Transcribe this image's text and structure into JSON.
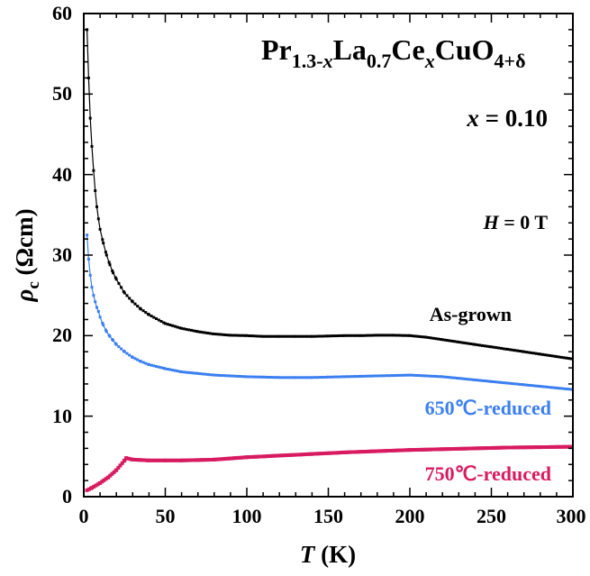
{
  "chart_data": {
    "type": "line",
    "title": {
      "pre": "Pr",
      "sub1": "1.3-",
      "sub1_var": "x",
      "mid1": "La",
      "sub2": "0.7",
      "mid2": "Ce",
      "sub3_var": "x",
      "mid3": "CuO",
      "sub4": "4+δ"
    },
    "annotations": {
      "x_var": "x",
      "x_value": " = 0.10",
      "h_var": "H",
      "h_value": " = 0 T"
    },
    "xlabel": {
      "var": "T",
      "unit": " (K)"
    },
    "ylabel": {
      "var": "ρ",
      "sub": "c",
      "unit": " (Ωcm)"
    },
    "xlim": [
      0,
      300
    ],
    "ylim": [
      0,
      60
    ],
    "xticks": [
      "0",
      "50",
      "100",
      "150",
      "200",
      "250",
      "300"
    ],
    "yticks": [
      "0",
      "10",
      "20",
      "30",
      "40",
      "50",
      "60"
    ],
    "series": [
      {
        "name": "As-grown",
        "color": "#000000",
        "x": [
          2,
          3,
          4,
          5,
          6,
          7,
          8,
          9,
          10,
          12,
          14,
          16,
          18,
          20,
          25,
          30,
          35,
          40,
          50,
          60,
          70,
          80,
          90,
          100,
          110,
          120,
          130,
          140,
          150,
          160,
          170,
          180,
          190,
          200,
          210,
          220,
          230,
          240,
          250,
          260,
          270,
          280,
          290,
          300
        ],
        "y": [
          58,
          52,
          47,
          43.5,
          40.5,
          38,
          36,
          34.5,
          33.2,
          31.5,
          30,
          28.8,
          27.8,
          27,
          25.3,
          24.2,
          23.3,
          22.6,
          21.5,
          20.9,
          20.5,
          20.2,
          20.05,
          20,
          19.9,
          19.9,
          19.9,
          19.9,
          19.95,
          20,
          20,
          20.05,
          20.05,
          20,
          19.8,
          19.5,
          19.2,
          18.9,
          18.6,
          18.3,
          18.0,
          17.7,
          17.4,
          17.1
        ]
      },
      {
        "name": "650℃-reduced",
        "color": "#3b7ff0",
        "x": [
          2,
          3,
          4,
          5,
          6,
          7,
          8,
          9,
          10,
          12,
          14,
          16,
          18,
          20,
          25,
          30,
          35,
          40,
          50,
          60,
          70,
          80,
          90,
          100,
          110,
          120,
          130,
          140,
          150,
          160,
          170,
          180,
          190,
          200,
          210,
          220,
          230,
          240,
          250,
          260,
          270,
          280,
          290,
          300
        ],
        "y": [
          32.5,
          29.5,
          27.5,
          26,
          25,
          24.2,
          23.5,
          23,
          22.3,
          21.3,
          20.5,
          19.9,
          19.4,
          18.9,
          18.0,
          17.3,
          16.8,
          16.4,
          15.9,
          15.5,
          15.3,
          15.1,
          15.0,
          14.9,
          14.85,
          14.8,
          14.8,
          14.8,
          14.85,
          14.9,
          14.95,
          15.0,
          15.05,
          15.1,
          15.0,
          14.9,
          14.7,
          14.5,
          14.3,
          14.1,
          13.9,
          13.7,
          13.5,
          13.3
        ]
      },
      {
        "name": "750℃-reduced",
        "color": "#d81b60",
        "x": [
          2,
          5,
          10,
          15,
          20,
          25,
          26,
          30,
          40,
          50,
          60,
          70,
          80,
          90,
          100,
          120,
          140,
          160,
          180,
          200,
          220,
          240,
          260,
          280,
          300
        ],
        "y": [
          0.8,
          1.1,
          1.7,
          2.4,
          3.3,
          4.5,
          4.8,
          4.6,
          4.5,
          4.5,
          4.5,
          4.55,
          4.6,
          4.75,
          4.9,
          5.1,
          5.3,
          5.5,
          5.65,
          5.8,
          5.9,
          6.0,
          6.1,
          6.15,
          6.2
        ]
      }
    ],
    "grid": false,
    "legend": "inline labels near curves"
  }
}
